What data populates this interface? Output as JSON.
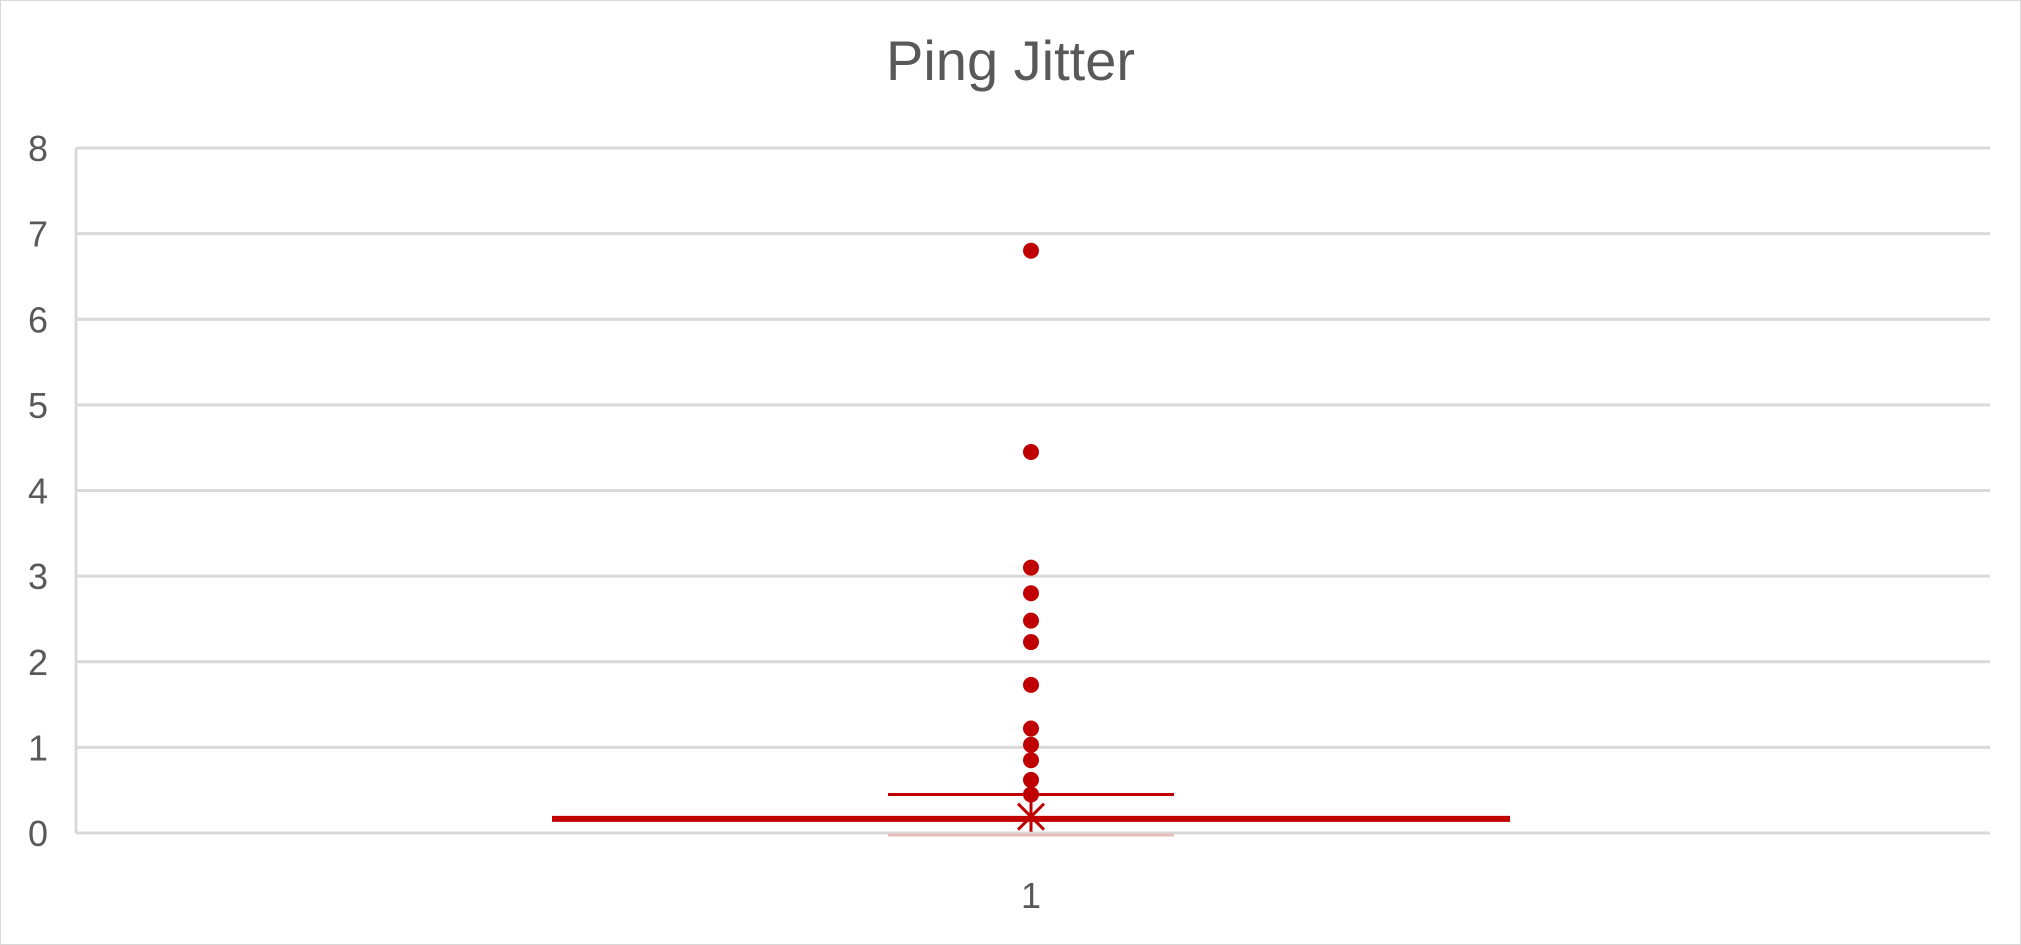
{
  "chart_data": {
    "type": "box",
    "title": "Ping Jitter",
    "categories": [
      "1"
    ],
    "ylim": [
      0,
      8
    ],
    "yticks": [
      0,
      1,
      2,
      3,
      4,
      5,
      6,
      7,
      8
    ],
    "grid": true,
    "box": {
      "min": 0,
      "q1": 0.13,
      "median": 0.16,
      "q3": 0.2,
      "upper_whisker": 0.45,
      "mean": 0.19
    },
    "outliers": [
      6.8,
      4.45,
      3.1,
      2.8,
      2.48,
      2.23,
      1.73,
      1.22,
      1.03,
      0.85,
      0.62,
      0.45
    ],
    "colors": {
      "series": "#c00000",
      "grid": "#d9d9d9",
      "text": "#595959"
    }
  }
}
